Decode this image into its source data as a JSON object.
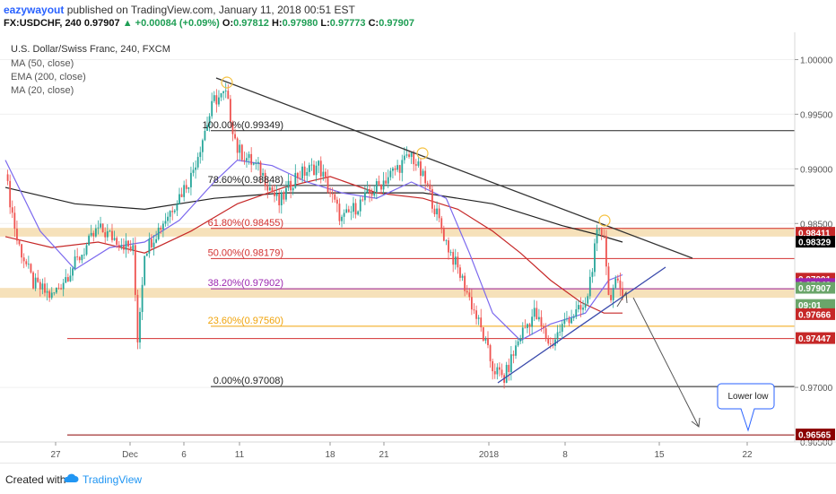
{
  "header": {
    "author": "eazywayout",
    "published_text": "published on TradingView.com, January 11, 2018 00:51 EST",
    "symbol": "FX:USDCHF, 240",
    "price": "0.97907",
    "change": "+0.00084 (+0.09%)",
    "o_label": "O:",
    "o_value": "0.97812",
    "h_label": "H:",
    "h_value": "0.97980",
    "l_label": "L:",
    "l_value": "0.97773",
    "c_label": "C:",
    "c_value": "0.97907"
  },
  "legend": {
    "title": "U.S. Dollar/Swiss Franc, 240, FXCM",
    "ma50": "MA (50, close)",
    "ema200": "EMA (200, close)",
    "ma20": "MA (20, close)"
  },
  "chart_data": {
    "type": "candlestick",
    "symbol": "USDCHF",
    "timeframe": "240",
    "ylim": [
      0.965,
      1.0025
    ],
    "y_ticks": [
      "1.00000",
      "0.99500",
      "0.99000",
      "0.98500",
      "0.97000",
      "0.96500"
    ],
    "x_ticks": [
      "27",
      "Dec",
      "6",
      "11",
      "18",
      "21",
      "2018",
      "8",
      "15",
      "22"
    ],
    "price_series": [
      {
        "x": 0,
        "y": 0.9895
      },
      {
        "x": 5,
        "y": 0.9835
      },
      {
        "x": 12,
        "y": 0.9795
      },
      {
        "x": 20,
        "y": 0.9783
      },
      {
        "x": 30,
        "y": 0.9813
      },
      {
        "x": 40,
        "y": 0.9845
      },
      {
        "x": 50,
        "y": 0.9833
      },
      {
        "x": 55,
        "y": 0.9825
      },
      {
        "x": 57,
        "y": 0.9745
      },
      {
        "x": 60,
        "y": 0.9825
      },
      {
        "x": 70,
        "y": 0.9858
      },
      {
        "x": 80,
        "y": 0.9893
      },
      {
        "x": 90,
        "y": 0.9963
      },
      {
        "x": 95,
        "y": 0.9968
      },
      {
        "x": 100,
        "y": 0.9918
      },
      {
        "x": 110,
        "y": 0.9898
      },
      {
        "x": 118,
        "y": 0.9868
      },
      {
        "x": 125,
        "y": 0.9893
      },
      {
        "x": 135,
        "y": 0.9903
      },
      {
        "x": 145,
        "y": 0.9853
      },
      {
        "x": 155,
        "y": 0.9873
      },
      {
        "x": 165,
        "y": 0.9893
      },
      {
        "x": 175,
        "y": 0.9913
      },
      {
        "x": 182,
        "y": 0.9883
      },
      {
        "x": 190,
        "y": 0.9833
      },
      {
        "x": 198,
        "y": 0.9793
      },
      {
        "x": 205,
        "y": 0.9753
      },
      {
        "x": 210,
        "y": 0.9718
      },
      {
        "x": 215,
        "y": 0.9708
      },
      {
        "x": 222,
        "y": 0.9748
      },
      {
        "x": 228,
        "y": 0.9768
      },
      {
        "x": 235,
        "y": 0.9738
      },
      {
        "x": 242,
        "y": 0.9763
      },
      {
        "x": 250,
        "y": 0.9773
      },
      {
        "x": 255,
        "y": 0.9838
      },
      {
        "x": 258,
        "y": 0.9843
      },
      {
        "x": 260,
        "y": 0.9783
      },
      {
        "x": 263,
        "y": 0.9793
      },
      {
        "x": 266,
        "y": 0.979
      }
    ],
    "ma20_series": [
      {
        "x": 0,
        "y": 0.9908
      },
      {
        "x": 15,
        "y": 0.9843
      },
      {
        "x": 30,
        "y": 0.9808
      },
      {
        "x": 45,
        "y": 0.9828
      },
      {
        "x": 60,
        "y": 0.9833
      },
      {
        "x": 75,
        "y": 0.9853
      },
      {
        "x": 90,
        "y": 0.9888
      },
      {
        "x": 100,
        "y": 0.9908
      },
      {
        "x": 115,
        "y": 0.9903
      },
      {
        "x": 130,
        "y": 0.9888
      },
      {
        "x": 145,
        "y": 0.9878
      },
      {
        "x": 160,
        "y": 0.9873
      },
      {
        "x": 175,
        "y": 0.9888
      },
      {
        "x": 190,
        "y": 0.9873
      },
      {
        "x": 200,
        "y": 0.9823
      },
      {
        "x": 210,
        "y": 0.9768
      },
      {
        "x": 222,
        "y": 0.9743
      },
      {
        "x": 235,
        "y": 0.9758
      },
      {
        "x": 250,
        "y": 0.9768
      },
      {
        "x": 260,
        "y": 0.9798
      },
      {
        "x": 266,
        "y": 0.9803
      }
    ],
    "ma50_series": [
      {
        "x": 0,
        "y": 0.9838
      },
      {
        "x": 20,
        "y": 0.9828
      },
      {
        "x": 40,
        "y": 0.9833
      },
      {
        "x": 60,
        "y": 0.9823
      },
      {
        "x": 80,
        "y": 0.9843
      },
      {
        "x": 100,
        "y": 0.9868
      },
      {
        "x": 120,
        "y": 0.9883
      },
      {
        "x": 140,
        "y": 0.9893
      },
      {
        "x": 160,
        "y": 0.9878
      },
      {
        "x": 180,
        "y": 0.9873
      },
      {
        "x": 195,
        "y": 0.9863
      },
      {
        "x": 210,
        "y": 0.9843
      },
      {
        "x": 222,
        "y": 0.9823
      },
      {
        "x": 235,
        "y": 0.9798
      },
      {
        "x": 248,
        "y": 0.9778
      },
      {
        "x": 258,
        "y": 0.9768
      },
      {
        "x": 266,
        "y": 0.9768
      }
    ],
    "ema200_series": [
      {
        "x": 0,
        "y": 0.9883
      },
      {
        "x": 30,
        "y": 0.9868
      },
      {
        "x": 60,
        "y": 0.9863
      },
      {
        "x": 90,
        "y": 0.9873
      },
      {
        "x": 120,
        "y": 0.9878
      },
      {
        "x": 150,
        "y": 0.9878
      },
      {
        "x": 180,
        "y": 0.9878
      },
      {
        "x": 210,
        "y": 0.9868
      },
      {
        "x": 240,
        "y": 0.9848
      },
      {
        "x": 255,
        "y": 0.984
      },
      {
        "x": 266,
        "y": 0.9833
      }
    ],
    "fib_levels": [
      {
        "label": "100.00%(0.99349)",
        "value": 0.99349,
        "color": "#222222"
      },
      {
        "label": "78.60%(0.98848)",
        "value": 0.98848,
        "color": "#222222"
      },
      {
        "label": "61.80%(0.98455)",
        "value": 0.98455,
        "color": "#d33030"
      },
      {
        "label": "50.00%(0.98179)",
        "value": 0.98179,
        "color": "#d33030"
      },
      {
        "label": "38.20%(0.97902)",
        "value": 0.97902,
        "color": "#9c27b0"
      },
      {
        "label": "23.60%(0.97560)",
        "value": 0.9756,
        "color": "#f0a30a"
      },
      {
        "label": "0.00%(0.97008)",
        "value": 0.97008,
        "color": "#222222"
      }
    ],
    "horizontal_lines": [
      {
        "value": 0.97447,
        "color": "#d33030"
      },
      {
        "value": 0.96565,
        "color": "#8b0000"
      }
    ],
    "zones": [
      {
        "from": 0.9782,
        "to": 0.9791,
        "color": "#f5deb3"
      },
      {
        "from": 0.9838,
        "to": 0.9846,
        "color": "#f5deb3"
      }
    ],
    "price_labels": [
      {
        "text": "0.98411",
        "value": 0.98411,
        "bg": "#c62828",
        "fg": "#ffffff"
      },
      {
        "text": "0.98329",
        "value": 0.98329,
        "bg": "#000000",
        "fg": "#ffffff"
      },
      {
        "text": "0.97991",
        "value": 0.97991,
        "bg": "#c62828",
        "fg": "#ffffff"
      },
      {
        "text": "0.97942",
        "value": 0.97942,
        "bg": "#9c27b0",
        "fg": "#ffffff"
      },
      {
        "text": "0.97907",
        "value": 0.97907,
        "bg": "#6aa56a",
        "fg": "#ffffff"
      },
      {
        "text": "09:01",
        "value": 0.9775,
        "bg": "#6aa56a",
        "fg": "#ffffff"
      },
      {
        "text": "0.97666",
        "value": 0.97666,
        "bg": "#c62828",
        "fg": "#ffffff"
      },
      {
        "text": "0.97447",
        "value": 0.97447,
        "bg": "#c62828",
        "fg": "#ffffff"
      },
      {
        "text": "0.96565",
        "value": 0.96565,
        "bg": "#8b0000",
        "fg": "#ffffff"
      }
    ],
    "annotation": "Lower low",
    "colors": {
      "up": "#26a69a",
      "down": "#ef5350",
      "ma20": "#7b68ee",
      "ma50": "#c62828",
      "ema200": "#222222",
      "trendline_down": "#333333",
      "trendline_up": "#3949ab"
    }
  },
  "footer": {
    "created_with": "Created with",
    "brand": "TradingView"
  }
}
